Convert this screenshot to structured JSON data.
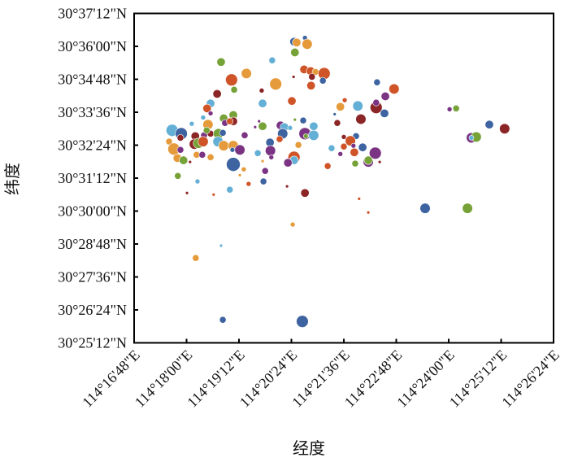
{
  "chart_data": {
    "type": "scatter",
    "title": "",
    "xlabel": "经度",
    "ylabel": "纬度",
    "x_units": "arc-minutes past 114°00'E",
    "y_units": "arc-minutes past 30°00'N",
    "xlim": [
      16.8,
      26.4
    ],
    "ylim": [
      25.2,
      37.2
    ],
    "x_ticks": [
      16.8,
      18.0,
      19.2,
      20.4,
      21.6,
      22.8,
      24.0,
      25.2,
      26.4
    ],
    "x_tick_labels": [
      "114°16'48\"E",
      "114°18'00\"E",
      "114°19'12\"E",
      "114°20'24\"E",
      "114°21'36\"E",
      "114°22'48\"E",
      "114°24'00\"E",
      "114°25'12\"E",
      "114°26'24\"E"
    ],
    "y_ticks": [
      37.2,
      36.0,
      34.8,
      33.6,
      32.4,
      31.2,
      30.0,
      28.8,
      27.6,
      26.4,
      25.2
    ],
    "y_tick_labels": [
      "30°37'12\"N",
      "30°36'00\"N",
      "30°34'48\"N",
      "30°33'36\"N",
      "30°32'24\"N",
      "30°31'12\"N",
      "30°30'00\"N",
      "30°28'48\"N",
      "30°27'36\"N",
      "30°26'24\"N",
      "30°25'12\"N"
    ],
    "grid": false,
    "legend": "none",
    "colors": {
      "b": "#3e63a1",
      "o": "#e59b3b",
      "g": "#76a238",
      "r": "#cf5428",
      "l": "#64afd5",
      "p": "#7b3483",
      "d": "#8c2626"
    },
    "points_format": [
      "lon_minutes",
      "lat_minutes",
      "color_key",
      "size_class"
    ],
    "points": [
      [
        20.46,
        36.17,
        "b",
        4
      ],
      [
        20.52,
        36.14,
        "o",
        4
      ],
      [
        20.71,
        36.31,
        "b",
        2
      ],
      [
        20.76,
        36.08,
        "o",
        5
      ],
      [
        20.48,
        35.78,
        "g",
        4
      ],
      [
        18.79,
        35.43,
        "g",
        4
      ],
      [
        19.96,
        35.49,
        "l",
        3
      ],
      [
        19.37,
        35.01,
        "o",
        5
      ],
      [
        19.03,
        34.78,
        "r",
        6
      ],
      [
        20.04,
        34.63,
        "o",
        6
      ],
      [
        20.69,
        35.16,
        "r",
        4
      ],
      [
        20.84,
        35.1,
        "r",
        4
      ],
      [
        20.95,
        35.07,
        "o",
        3
      ],
      [
        21.15,
        35.01,
        "r",
        6
      ],
      [
        20.87,
        34.89,
        "d",
        3
      ],
      [
        21.12,
        34.75,
        "b",
        3
      ],
      [
        20.85,
        34.57,
        "r",
        4
      ],
      [
        20.45,
        34.89,
        "d",
        1
      ],
      [
        19.09,
        34.42,
        "g",
        3
      ],
      [
        19.72,
        34.39,
        "d",
        2
      ],
      [
        18.7,
        34.27,
        "d",
        4
      ],
      [
        20.41,
        34.01,
        "r",
        4
      ],
      [
        18.55,
        33.92,
        "l",
        4
      ],
      [
        18.47,
        33.74,
        "r",
        4
      ],
      [
        18.55,
        33.56,
        "p",
        2
      ],
      [
        19.74,
        33.92,
        "l",
        4
      ],
      [
        18.38,
        33.41,
        "l",
        2
      ],
      [
        18.85,
        33.38,
        "g",
        4
      ],
      [
        19.07,
        33.5,
        "g",
        4
      ],
      [
        19.07,
        33.27,
        "d",
        4
      ],
      [
        18.88,
        33.21,
        "p",
        3
      ],
      [
        18.99,
        33.27,
        "r",
        3
      ],
      [
        18.12,
        33.18,
        "l",
        2
      ],
      [
        18.49,
        33.15,
        "o",
        5
      ],
      [
        19.66,
        33.27,
        "p",
        1
      ],
      [
        19.57,
        33.06,
        "p",
        1
      ],
      [
        19.74,
        33.09,
        "g",
        4
      ],
      [
        20.48,
        33.33,
        "g",
        1
      ],
      [
        20.67,
        33.3,
        "b",
        3
      ],
      [
        20.15,
        33.12,
        "p",
        4
      ],
      [
        20.24,
        33.06,
        "l",
        4
      ],
      [
        20.37,
        33.03,
        "l",
        2
      ],
      [
        17.67,
        32.94,
        "l",
        6
      ],
      [
        17.88,
        32.82,
        "b",
        6
      ],
      [
        17.86,
        32.67,
        "d",
        3
      ],
      [
        18.2,
        32.73,
        "d",
        4
      ],
      [
        18.4,
        32.76,
        "p",
        3
      ],
      [
        18.55,
        32.82,
        "d",
        3
      ],
      [
        18.46,
        32.94,
        "g",
        3
      ],
      [
        18.73,
        32.82,
        "g",
        5
      ],
      [
        18.83,
        32.85,
        "b",
        3
      ],
      [
        19.33,
        32.76,
        "p",
        3
      ],
      [
        20.2,
        32.82,
        "b",
        5
      ],
      [
        20.71,
        32.82,
        "p",
        6
      ],
      [
        20.91,
        32.76,
        "l",
        5
      ],
      [
        20.91,
        33.09,
        "l",
        4
      ],
      [
        20.73,
        32.73,
        "g",
        2
      ],
      [
        17.6,
        32.53,
        "o",
        3
      ],
      [
        18.18,
        32.44,
        "d",
        5
      ],
      [
        18.27,
        32.47,
        "g",
        5
      ],
      [
        18.38,
        32.53,
        "r",
        5
      ],
      [
        18.72,
        32.53,
        "l",
        5
      ],
      [
        18.85,
        32.38,
        "o",
        5
      ],
      [
        19.07,
        32.38,
        "o",
        5
      ],
      [
        19.05,
        32.23,
        "b",
        2
      ],
      [
        19.91,
        32.5,
        "b",
        4
      ],
      [
        20.13,
        32.62,
        "r",
        3
      ],
      [
        20.56,
        32.41,
        "o",
        3
      ],
      [
        17.71,
        32.26,
        "o",
        6
      ],
      [
        17.86,
        32.23,
        "p",
        3
      ],
      [
        19.22,
        32.23,
        "p",
        5
      ],
      [
        19.92,
        32.2,
        "p",
        5
      ],
      [
        19.94,
        31.96,
        "p",
        2
      ],
      [
        19.63,
        32.11,
        "l",
        3
      ],
      [
        20.46,
        31.96,
        "r",
        6
      ],
      [
        20.46,
        31.85,
        "l",
        4
      ],
      [
        17.79,
        31.93,
        "o",
        4
      ],
      [
        17.93,
        31.85,
        "g",
        4
      ],
      [
        18.23,
        32.05,
        "o",
        3
      ],
      [
        18.36,
        32.05,
        "p",
        3
      ],
      [
        18.55,
        31.96,
        "o",
        3
      ],
      [
        18.08,
        31.79,
        "d",
        1
      ],
      [
        19.07,
        31.7,
        "b",
        7
      ],
      [
        20.32,
        31.76,
        "p",
        4
      ],
      [
        19.31,
        31.52,
        "o",
        2
      ],
      [
        19.22,
        31.31,
        "o",
        1
      ],
      [
        19.74,
        31.82,
        "o",
        1
      ],
      [
        19.8,
        31.46,
        "p",
        3
      ],
      [
        17.8,
        31.28,
        "g",
        3
      ],
      [
        18.25,
        31.08,
        "l",
        2
      ],
      [
        18.99,
        30.78,
        "l",
        3
      ],
      [
        19.42,
        30.99,
        "r",
        2
      ],
      [
        19.76,
        31.08,
        "b",
        3
      ],
      [
        20.3,
        30.9,
        "d",
        1
      ],
      [
        18.01,
        30.66,
        "d",
        1
      ],
      [
        18.62,
        30.6,
        "r",
        1
      ],
      [
        20.71,
        30.66,
        "d",
        4
      ],
      [
        21.95,
        30.45,
        "r",
        1
      ],
      [
        21.52,
        33.8,
        "o",
        4
      ],
      [
        21.92,
        33.83,
        "l",
        5
      ],
      [
        21.62,
        34.04,
        "r",
        2
      ],
      [
        21.39,
        33.53,
        "b",
        1
      ],
      [
        21.45,
        33.21,
        "d",
        3
      ],
      [
        21.99,
        33.35,
        "d",
        5
      ],
      [
        21.6,
        32.7,
        "d",
        2
      ],
      [
        21.88,
        32.73,
        "b",
        3
      ],
      [
        21.32,
        32.29,
        "l",
        3
      ],
      [
        21.52,
        32.08,
        "p",
        2
      ],
      [
        21.75,
        32.56,
        "r",
        5
      ],
      [
        21.6,
        32.35,
        "r",
        3
      ],
      [
        21.86,
        31.73,
        "g",
        3
      ],
      [
        21.23,
        31.64,
        "r",
        3
      ],
      [
        22.03,
        32.32,
        "b",
        4
      ],
      [
        22.36,
        34.69,
        "b",
        3
      ],
      [
        22.75,
        34.45,
        "r",
        5
      ],
      [
        22.55,
        34.18,
        "p",
        4
      ],
      [
        22.34,
        33.77,
        "d",
        6
      ],
      [
        22.34,
        33.95,
        "p",
        3
      ],
      [
        22.53,
        33.56,
        "b",
        4
      ],
      [
        24.02,
        33.71,
        "p",
        2
      ],
      [
        24.17,
        33.74,
        "g",
        3
      ],
      [
        24.93,
        33.15,
        "b",
        4
      ],
      [
        25.28,
        33.0,
        "d",
        5
      ],
      [
        24.52,
        32.67,
        "p",
        5
      ],
      [
        24.63,
        32.7,
        "g",
        5
      ],
      [
        24.52,
        32.67,
        "l",
        2
      ],
      [
        23.46,
        30.1,
        "b",
        5
      ],
      [
        24.43,
        30.1,
        "g",
        5
      ],
      [
        22.32,
        32.11,
        "p",
        6
      ],
      [
        22.16,
        31.79,
        "p",
        5
      ],
      [
        22.16,
        31.85,
        "g",
        4
      ],
      [
        22.42,
        31.79,
        "d",
        1
      ],
      [
        21.82,
        32.38,
        "p",
        2
      ],
      [
        21.84,
        32.14,
        "r",
        4
      ],
      [
        22.16,
        29.95,
        "r",
        1
      ],
      [
        20.43,
        29.51,
        "o",
        2
      ],
      [
        18.21,
        28.29,
        "o",
        3
      ],
      [
        18.79,
        28.74,
        "l",
        1
      ],
      [
        18.83,
        26.04,
        "b",
        3
      ],
      [
        20.65,
        25.98,
        "b",
        6
      ]
    ]
  }
}
